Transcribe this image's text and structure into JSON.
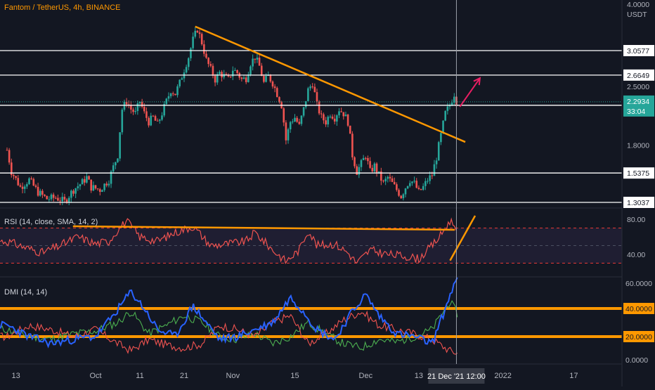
{
  "colors": {
    "background": "#131722",
    "up": "#26a69a",
    "down": "#ef5350",
    "trendline": "#ff9800",
    "projection_arrow": "#e91e63",
    "level_line": "#ffffff",
    "rsi_line": "#ef5350",
    "rsi_band": "#2a2540",
    "rsi_guides": "#e53935",
    "dmi_plus": "#4caf50",
    "dmi_minus": "#ef5350",
    "adx": "#2962ff",
    "crosshair": "#9aa0aa",
    "current_price": "#26a69a"
  },
  "header": {
    "symbol_title": "Fantom / TetherUS, 4h, BINANCE"
  },
  "price_axis": {
    "top_label": "4.0000",
    "currency": "USDT",
    "tick_labels": [
      {
        "value": 3.0577,
        "label": "3.0577",
        "boxed": true
      },
      {
        "value": 2.6649,
        "label": "2.6649",
        "boxed": true
      },
      {
        "value": 2.5,
        "label": "2.5000",
        "boxed": false
      },
      {
        "value": 2.2492,
        "label": "2.2492",
        "boxed": true
      },
      {
        "value": 1.8,
        "label": "1.8000",
        "boxed": false
      },
      {
        "value": 1.5375,
        "label": "1.5375",
        "boxed": true
      },
      {
        "value": 1.3037,
        "label": "1.3037",
        "boxed": true
      }
    ],
    "current_price": "2.2934",
    "countdown": "33:04"
  },
  "time_axis": {
    "ticks": [
      {
        "label": "13",
        "day": -18
      },
      {
        "label": "Oct",
        "day": 0
      },
      {
        "label": "11",
        "day": 10
      },
      {
        "label": "21",
        "day": 20
      },
      {
        "label": "Nov",
        "day": 31
      },
      {
        "label": "15",
        "day": 45
      },
      {
        "label": "Dec",
        "day": 61
      },
      {
        "label": "13",
        "day": 73
      },
      {
        "label": "2022",
        "day": 92
      },
      {
        "label": "17",
        "day": 108
      }
    ],
    "crosshair_label": "21 Dec '21   12:00",
    "crosshair_day": 81.5
  },
  "rsi_panel": {
    "title": "RSI (14, close, SMA, 14, 2)",
    "tick_labels": [
      "80.00",
      "40.00"
    ]
  },
  "dmi_panel": {
    "title": "DMI (14, 14)",
    "tick_labels": [
      "60.0000",
      "40.0000",
      "20.0000",
      "0.0000"
    ]
  },
  "chart_data": {
    "type": "candlestick",
    "symbol": "Fantom / TetherUS",
    "interval": "4h",
    "exchange": "BINANCE",
    "x_unit": "days since 1 Oct 2021",
    "price_axis_range": [
      1.3,
      4.0
    ],
    "price_scale": "log",
    "key_levels": [
      3.0577,
      2.6649,
      2.2492,
      1.5375,
      1.3037
    ],
    "current_price": 2.2934,
    "price_path": [
      [
        -20,
        1.75
      ],
      [
        -19,
        1.55
      ],
      [
        -17,
        1.42
      ],
      [
        -15,
        1.48
      ],
      [
        -13,
        1.38
      ],
      [
        -11,
        1.33
      ],
      [
        -9,
        1.34
      ],
      [
        -7,
        1.31
      ],
      [
        -5,
        1.4
      ],
      [
        -3,
        1.46
      ],
      [
        -2,
        1.5
      ],
      [
        -1,
        1.42
      ],
      [
        1,
        1.4
      ],
      [
        3,
        1.48
      ],
      [
        5,
        1.7
      ],
      [
        6,
        2.2
      ],
      [
        7,
        2.3
      ],
      [
        8,
        2.2
      ],
      [
        9,
        2.15
      ],
      [
        10,
        2.3
      ],
      [
        11,
        2.15
      ],
      [
        12,
        2.05
      ],
      [
        13,
        2.1
      ],
      [
        14,
        2.02
      ],
      [
        15,
        2.15
      ],
      [
        16,
        2.3
      ],
      [
        17,
        2.45
      ],
      [
        18,
        2.4
      ],
      [
        19,
        2.55
      ],
      [
        20,
        2.75
      ],
      [
        21,
        2.95
      ],
      [
        22,
        3.25
      ],
      [
        23,
        3.45
      ],
      [
        24,
        3.2
      ],
      [
        25,
        2.9
      ],
      [
        26,
        2.75
      ],
      [
        27,
        2.6
      ],
      [
        28,
        2.7
      ],
      [
        29,
        2.65
      ],
      [
        30,
        2.6
      ],
      [
        31,
        2.75
      ],
      [
        32,
        2.7
      ],
      [
        33,
        2.6
      ],
      [
        34,
        2.62
      ],
      [
        35,
        2.85
      ],
      [
        36,
        2.95
      ],
      [
        37,
        2.8
      ],
      [
        38,
        2.55
      ],
      [
        39,
        2.65
      ],
      [
        40,
        2.55
      ],
      [
        41,
        2.4
      ],
      [
        42,
        2.25
      ],
      [
        43,
        1.85
      ],
      [
        44,
        2.05
      ],
      [
        45,
        2.1
      ],
      [
        46,
        2.0
      ],
      [
        47,
        2.2
      ],
      [
        48,
        2.45
      ],
      [
        49,
        2.55
      ],
      [
        50,
        2.25
      ],
      [
        51,
        2.1
      ],
      [
        52,
        2.05
      ],
      [
        53,
        2.15
      ],
      [
        54,
        2.1
      ],
      [
        55,
        2.2
      ],
      [
        56,
        2.15
      ],
      [
        57,
        2.05
      ],
      [
        58,
        1.7
      ],
      [
        59,
        1.55
      ],
      [
        60,
        1.62
      ],
      [
        61,
        1.7
      ],
      [
        62,
        1.55
      ],
      [
        63,
        1.6
      ],
      [
        64,
        1.52
      ],
      [
        65,
        1.45
      ],
      [
        66,
        1.5
      ],
      [
        67,
        1.45
      ],
      [
        68,
        1.4
      ],
      [
        69,
        1.35
      ],
      [
        70,
        1.42
      ],
      [
        71,
        1.48
      ],
      [
        72,
        1.45
      ],
      [
        73,
        1.38
      ],
      [
        74,
        1.42
      ],
      [
        75,
        1.48
      ],
      [
        76,
        1.52
      ],
      [
        77,
        1.68
      ],
      [
        78,
        1.9
      ],
      [
        79,
        2.15
      ],
      [
        80,
        2.25
      ],
      [
        81,
        2.4
      ],
      [
        81.5,
        2.29
      ]
    ],
    "annotations": {
      "resistance_trendline": [
        [
          22.5,
          3.5
        ],
        [
          83.5,
          1.83
        ]
      ],
      "projection_arrow": [
        [
          81,
          2.23
        ],
        [
          83,
          2.62
        ]
      ],
      "rsi_trendline_horizontal": [
        [
          -4,
          72
        ],
        [
          80,
          68
        ]
      ],
      "rsi_trendline_rising": [
        [
          78,
          33
        ],
        [
          83.5,
          84
        ]
      ]
    },
    "rsi": {
      "upper_band": 70,
      "lower_band": 30,
      "axis_range": [
        20,
        90
      ],
      "values": [
        [
          -20,
          55
        ],
        [
          -16,
          48
        ],
        [
          -12,
          42
        ],
        [
          -8,
          50
        ],
        [
          -4,
          60
        ],
        [
          0,
          52
        ],
        [
          3,
          55
        ],
        [
          5,
          68
        ],
        [
          7,
          78
        ],
        [
          10,
          60
        ],
        [
          14,
          55
        ],
        [
          18,
          65
        ],
        [
          22,
          72
        ],
        [
          26,
          50
        ],
        [
          30,
          52
        ],
        [
          34,
          55
        ],
        [
          36,
          65
        ],
        [
          40,
          45
        ],
        [
          43,
          32
        ],
        [
          46,
          45
        ],
        [
          48,
          68
        ],
        [
          50,
          50
        ],
        [
          54,
          52
        ],
        [
          57,
          42
        ],
        [
          59,
          30
        ],
        [
          62,
          45
        ],
        [
          66,
          40
        ],
        [
          70,
          38
        ],
        [
          73,
          35
        ],
        [
          76,
          50
        ],
        [
          78,
          62
        ],
        [
          80,
          78
        ],
        [
          81.5,
          72
        ]
      ]
    },
    "dmi": {
      "axis_range": [
        0,
        60
      ],
      "guide_levels": [
        40,
        20
      ],
      "plus_di": [
        [
          -20,
          25
        ],
        [
          -15,
          20
        ],
        [
          -10,
          18
        ],
        [
          -5,
          22
        ],
        [
          0,
          24
        ],
        [
          5,
          30
        ],
        [
          8,
          38
        ],
        [
          12,
          22
        ],
        [
          16,
          28
        ],
        [
          20,
          35
        ],
        [
          24,
          30
        ],
        [
          28,
          20
        ],
        [
          32,
          18
        ],
        [
          36,
          22
        ],
        [
          40,
          15
        ],
        [
          44,
          20
        ],
        [
          48,
          30
        ],
        [
          52,
          22
        ],
        [
          56,
          15
        ],
        [
          60,
          12
        ],
        [
          64,
          18
        ],
        [
          68,
          16
        ],
        [
          72,
          20
        ],
        [
          76,
          25
        ],
        [
          80,
          45
        ],
        [
          82,
          35
        ]
      ],
      "minus_di": [
        [
          -20,
          20
        ],
        [
          -15,
          28
        ],
        [
          -10,
          25
        ],
        [
          -5,
          20
        ],
        [
          0,
          25
        ],
        [
          5,
          15
        ],
        [
          8,
          10
        ],
        [
          12,
          18
        ],
        [
          16,
          14
        ],
        [
          20,
          12
        ],
        [
          24,
          15
        ],
        [
          28,
          28
        ],
        [
          32,
          25
        ],
        [
          36,
          20
        ],
        [
          40,
          30
        ],
        [
          44,
          35
        ],
        [
          48,
          15
        ],
        [
          52,
          22
        ],
        [
          56,
          32
        ],
        [
          60,
          38
        ],
        [
          64,
          28
        ],
        [
          68,
          25
        ],
        [
          72,
          22
        ],
        [
          76,
          18
        ],
        [
          80,
          10
        ],
        [
          82,
          8
        ]
      ],
      "adx": [
        [
          -20,
          28
        ],
        [
          -15,
          20
        ],
        [
          -10,
          15
        ],
        [
          -5,
          18
        ],
        [
          0,
          20
        ],
        [
          4,
          35
        ],
        [
          8,
          52
        ],
        [
          11,
          40
        ],
        [
          14,
          25
        ],
        [
          18,
          20
        ],
        [
          22,
          42
        ],
        [
          25,
          30
        ],
        [
          28,
          18
        ],
        [
          32,
          20
        ],
        [
          36,
          25
        ],
        [
          40,
          30
        ],
        [
          44,
          48
        ],
        [
          47,
          38
        ],
        [
          50,
          25
        ],
        [
          54,
          18
        ],
        [
          58,
          38
        ],
        [
          61,
          50
        ],
        [
          64,
          35
        ],
        [
          68,
          22
        ],
        [
          72,
          20
        ],
        [
          76,
          15
        ],
        [
          79,
          40
        ],
        [
          81,
          58
        ],
        [
          82,
          60
        ]
      ]
    }
  }
}
